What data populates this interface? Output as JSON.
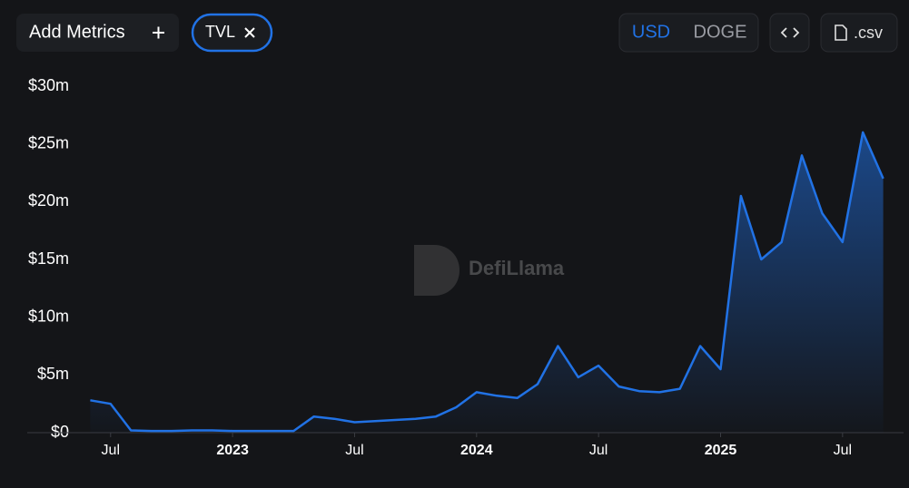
{
  "controls": {
    "add_metrics": "Add Metrics",
    "metric": "TVL",
    "currencies": [
      "USD",
      "DOGE"
    ],
    "csv": ".csv"
  },
  "watermark": "DefiLlama",
  "chart_data": {
    "type": "area",
    "x": [
      "2022-06",
      "2022-07",
      "2022-08",
      "2022-09",
      "2022-10",
      "2022-11",
      "2022-12",
      "2023-01",
      "2023-02",
      "2023-03",
      "2023-04",
      "2023-05",
      "2023-06",
      "2023-07",
      "2023-08",
      "2023-09",
      "2023-10",
      "2023-11",
      "2023-12",
      "2024-01",
      "2024-02",
      "2024-03",
      "2024-04",
      "2024-05",
      "2024-06",
      "2024-07",
      "2024-08",
      "2024-09",
      "2024-10",
      "2024-11",
      "2024-12",
      "2025-01",
      "2025-02",
      "2025-03",
      "2025-04",
      "2025-05",
      "2025-06",
      "2025-07",
      "2025-08",
      "2025-09"
    ],
    "series": [
      {
        "name": "TVL",
        "color": "#2172e5",
        "values": [
          2.8,
          2.5,
          0.2,
          0.15,
          0.15,
          0.2,
          0.2,
          0.15,
          0.15,
          0.15,
          0.15,
          1.4,
          1.2,
          0.9,
          1.0,
          1.1,
          1.2,
          1.4,
          2.2,
          3.5,
          3.2,
          3.0,
          4.2,
          7.5,
          4.8,
          5.8,
          4.0,
          3.6,
          3.5,
          3.8,
          7.5,
          5.5,
          20.5,
          15.0,
          16.5,
          24.0,
          19.0,
          16.5,
          26.0,
          22.0
        ]
      }
    ],
    "xlim": [
      "2022-05",
      "2025-10"
    ],
    "xticks": [
      {
        "value": "2022-07",
        "label": "Jul"
      },
      {
        "value": "2023-01",
        "label": "2023"
      },
      {
        "value": "2023-07",
        "label": "Jul"
      },
      {
        "value": "2024-01",
        "label": "2024"
      },
      {
        "value": "2024-07",
        "label": "Jul"
      },
      {
        "value": "2025-01",
        "label": "2025"
      },
      {
        "value": "2025-07",
        "label": "Jul"
      }
    ],
    "ylim": [
      0,
      30
    ],
    "yticks": [
      {
        "value": 0,
        "label": "$0"
      },
      {
        "value": 5,
        "label": "$5m"
      },
      {
        "value": 10,
        "label": "$10m"
      },
      {
        "value": 15,
        "label": "$15m"
      },
      {
        "value": 20,
        "label": "$20m"
      },
      {
        "value": 25,
        "label": "$25m"
      },
      {
        "value": 30,
        "label": "$30m"
      }
    ],
    "grid": false
  }
}
